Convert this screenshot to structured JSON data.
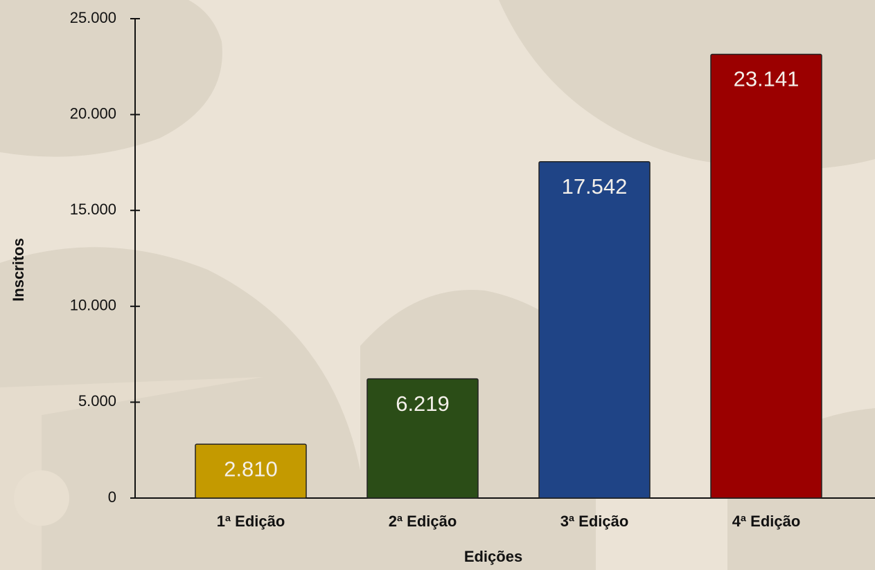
{
  "chart_data": {
    "type": "bar",
    "x_label": "Edições",
    "y_label": "Inscritos",
    "categories": [
      "1ª Edição",
      "2ª Edição",
      "3ª Edição",
      "4ª Edição"
    ],
    "values": [
      2810,
      6219,
      17542,
      23141
    ],
    "value_labels": [
      "2.810",
      "6.219",
      "17.542",
      "23.141"
    ],
    "colors": [
      "#c49a00",
      "#2b4d17",
      "#1f4486",
      "#9b0000"
    ],
    "ylim": [
      0,
      25000
    ],
    "yticks": [
      0,
      {
        "value": 5000,
        "label": "5.000"
      },
      {
        "value": 10000,
        "label": "10.000"
      },
      {
        "value": 15000,
        "label": "15.000"
      },
      {
        "value": 20000,
        "label": "20.000"
      },
      {
        "value": 25000,
        "label": "25.000"
      }
    ],
    "grid": false
  }
}
